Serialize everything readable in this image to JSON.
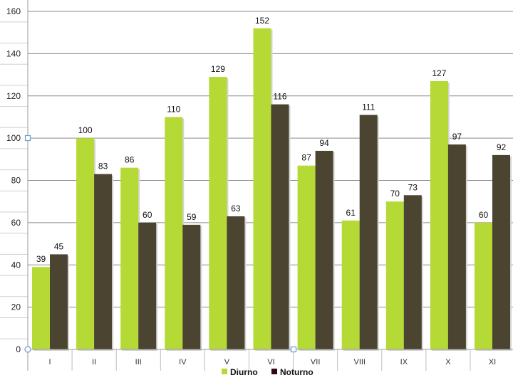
{
  "chart_data": {
    "type": "bar",
    "categories": [
      "I",
      "II",
      "III",
      "IV",
      "V",
      "VI",
      "VII",
      "VIII",
      "IX",
      "X",
      "XI"
    ],
    "series": [
      {
        "name": "Diurno",
        "values": [
          39,
          100,
          86,
          110,
          129,
          152,
          87,
          61,
          70,
          127,
          60
        ],
        "color": "#b5d935"
      },
      {
        "name": "Noturno",
        "values": [
          45,
          83,
          60,
          59,
          63,
          116,
          94,
          111,
          73,
          97,
          92
        ],
        "color": "#4a4430"
      }
    ],
    "ylim": [
      0,
      160
    ],
    "yticks": [
      0,
      20,
      40,
      60,
      80,
      100,
      120,
      140,
      160
    ],
    "data_labels": true,
    "grid": true,
    "legend": "bottom",
    "legend_marker_colors": [
      "#b5d935",
      "#2b0a14"
    ]
  }
}
